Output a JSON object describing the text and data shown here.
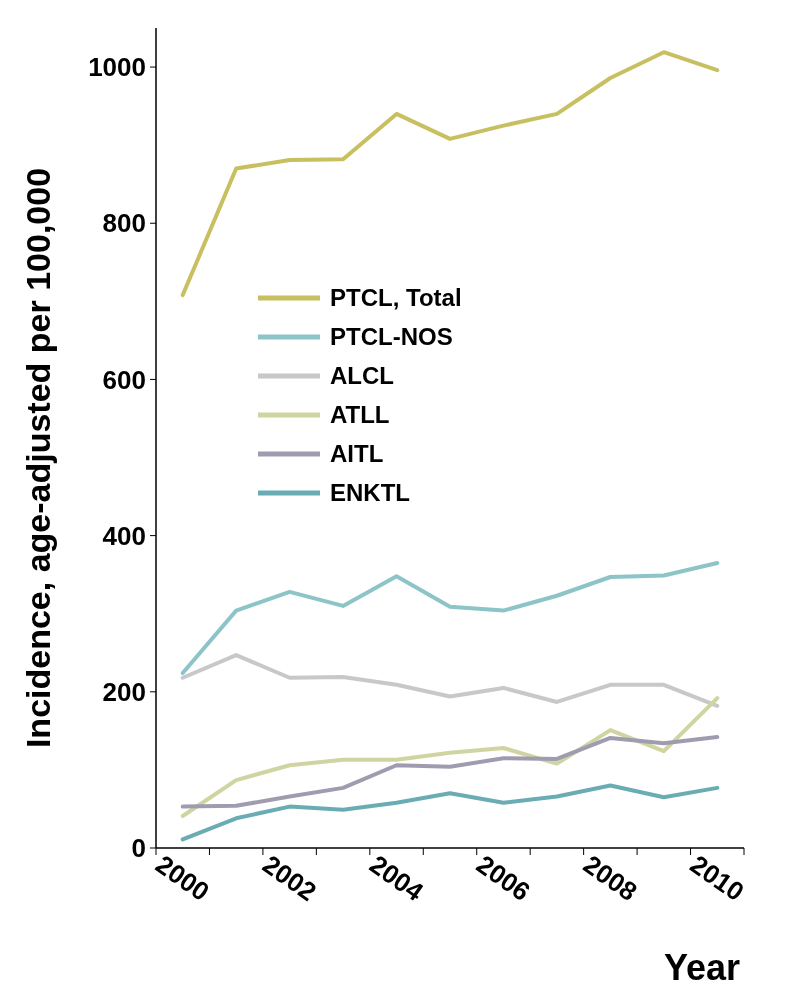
{
  "chart_data": {
    "type": "line",
    "xlabel": "Year",
    "ylabel": "Incidence, age-adjusted per 100,000",
    "categories": [
      "2000",
      null,
      "2002",
      null,
      "2004",
      null,
      "2006",
      null,
      "2008",
      null,
      "2010"
    ],
    "ylim": [
      0,
      1050
    ],
    "yticks": [
      0,
      200,
      400,
      600,
      800,
      1000
    ],
    "grid": false,
    "legend": "center",
    "marker": "none",
    "series": [
      {
        "name": "PTCL, Total",
        "color": "#c8c060",
        "values": [
          708,
          870,
          881,
          882,
          940,
          908,
          925,
          940,
          986,
          1019,
          996
        ]
      },
      {
        "name": "PTCL-NOS",
        "color": "#8cc4c8",
        "values": [
          224,
          304,
          328,
          310,
          348,
          309,
          304,
          323,
          347,
          349,
          365
        ]
      },
      {
        "name": "ALCL",
        "color": "#c8c8c8",
        "values": [
          218,
          247,
          218,
          219,
          209,
          194,
          205,
          187,
          209,
          209,
          182
        ]
      },
      {
        "name": "ATLL",
        "color": "#d0d4a0",
        "values": [
          41,
          87,
          106,
          113,
          113,
          122,
          128,
          108,
          151,
          124,
          192
        ]
      },
      {
        "name": "AITL",
        "color": "#a09cb0",
        "values": [
          53,
          54,
          66,
          77,
          106,
          104,
          115,
          114,
          141,
          134,
          142
        ]
      },
      {
        "name": "ENKTL",
        "color": "#6aacb4",
        "values": [
          11,
          38,
          53,
          49,
          58,
          70,
          58,
          66,
          80,
          65,
          77
        ]
      }
    ]
  }
}
